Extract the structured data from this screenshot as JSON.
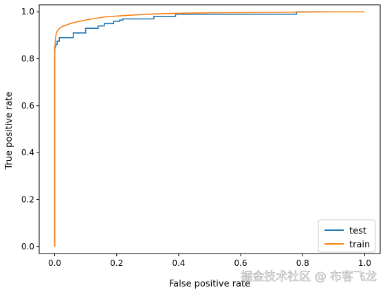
{
  "chart_data": {
    "type": "line",
    "xlabel": "False positive rate",
    "ylabel": "True positive rate",
    "xlim": [
      -0.05,
      1.05
    ],
    "ylim": [
      -0.03,
      1.03
    ],
    "xticks": [
      "0.0",
      "0.2",
      "0.4",
      "0.6",
      "0.8",
      "1.0"
    ],
    "yticks": [
      "0.0",
      "0.2",
      "0.4",
      "0.6",
      "0.8",
      "1.0"
    ],
    "grid": false,
    "legend_position": "lower-right",
    "series": [
      {
        "name": "test",
        "color": "#1f77b4",
        "x": [
          0.0,
          0.0,
          0.0,
          0.003,
          0.003,
          0.008,
          0.008,
          0.015,
          0.015,
          0.03,
          0.03,
          0.06,
          0.06,
          0.1,
          0.1,
          0.14,
          0.14,
          0.16,
          0.16,
          0.19,
          0.19,
          0.21,
          0.21,
          0.22,
          0.22,
          0.32,
          0.32,
          0.39,
          0.39,
          0.78,
          0.78,
          1.0
        ],
        "y": [
          0.0,
          0.66,
          0.85,
          0.85,
          0.86,
          0.86,
          0.875,
          0.875,
          0.89,
          0.89,
          0.89,
          0.89,
          0.91,
          0.91,
          0.93,
          0.93,
          0.94,
          0.94,
          0.95,
          0.95,
          0.96,
          0.96,
          0.965,
          0.965,
          0.97,
          0.97,
          0.98,
          0.98,
          0.99,
          0.99,
          1.0,
          1.0
        ]
      },
      {
        "name": "train",
        "color": "#ff7f0e",
        "x": [
          0.0,
          0.0,
          0.001,
          0.002,
          0.004,
          0.007,
          0.012,
          0.02,
          0.03,
          0.05,
          0.08,
          0.12,
          0.16,
          0.21,
          0.26,
          0.32,
          0.4,
          0.5,
          0.6,
          0.7,
          0.8,
          0.9,
          1.0
        ],
        "y": [
          0.0,
          0.8,
          0.85,
          0.88,
          0.9,
          0.915,
          0.925,
          0.935,
          0.94,
          0.95,
          0.96,
          0.97,
          0.978,
          0.983,
          0.987,
          0.991,
          0.994,
          0.996,
          0.997,
          0.998,
          0.999,
          1.0,
          1.0
        ]
      }
    ]
  },
  "watermark": {
    "text": "掘金技术社区 @ 布客飞龙"
  }
}
